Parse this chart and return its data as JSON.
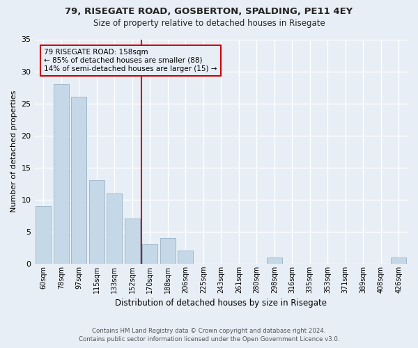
{
  "title1": "79, RISEGATE ROAD, GOSBERTON, SPALDING, PE11 4EY",
  "title2": "Size of property relative to detached houses in Risegate",
  "xlabel": "Distribution of detached houses by size in Risegate",
  "ylabel": "Number of detached properties",
  "categories": [
    "60sqm",
    "78sqm",
    "97sqm",
    "115sqm",
    "133sqm",
    "152sqm",
    "170sqm",
    "188sqm",
    "206sqm",
    "225sqm",
    "243sqm",
    "261sqm",
    "280sqm",
    "298sqm",
    "316sqm",
    "335sqm",
    "353sqm",
    "371sqm",
    "389sqm",
    "408sqm",
    "426sqm"
  ],
  "values": [
    9,
    28,
    26,
    13,
    11,
    7,
    3,
    4,
    2,
    0,
    0,
    0,
    0,
    1,
    0,
    0,
    0,
    0,
    0,
    0,
    1
  ],
  "bar_color": "#c5d8e8",
  "bar_edge_color": "#a0b8cc",
  "background_color": "#e8eef5",
  "grid_color": "#ffffff",
  "vline_x": 5.5,
  "vline_color": "#cc0000",
  "annotation_line1": "79 RISEGATE ROAD: 158sqm",
  "annotation_line2": "← 85% of detached houses are smaller (88)",
  "annotation_line3": "14% of semi-detached houses are larger (15) →",
  "annotation_box_color": "#cc0000",
  "ylim": [
    0,
    35
  ],
  "yticks": [
    0,
    5,
    10,
    15,
    20,
    25,
    30,
    35
  ],
  "footer1": "Contains HM Land Registry data © Crown copyright and database right 2024.",
  "footer2": "Contains public sector information licensed under the Open Government Licence v3.0."
}
